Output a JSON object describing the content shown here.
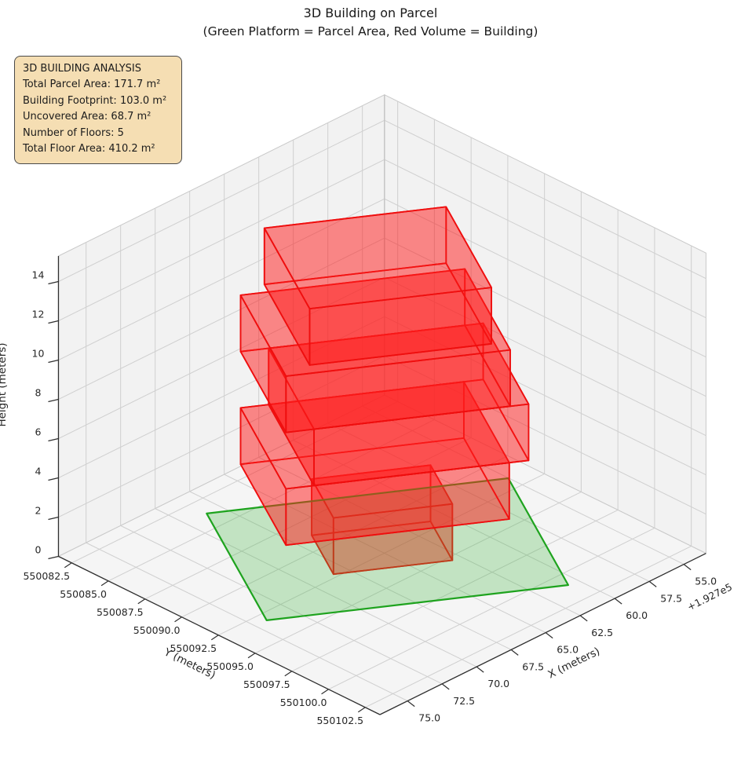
{
  "title": {
    "line1": "3D Building on Parcel",
    "line2": "(Green Platform = Parcel Area, Red Volume = Building)"
  },
  "info_box": {
    "title": "3D BUILDING ANALYSIS",
    "lines": [
      "Total Parcel Area: 171.7 m²",
      "Building Footprint: 103.0 m²",
      "Uncovered Area: 68.7 m²",
      "Number of Floors: 5",
      "Total Floor Area: 410.2 m²"
    ],
    "bg_color": "#f5deb3",
    "border_color": "#4a4a4a"
  },
  "chart_data": {
    "type": "3d-building-plot",
    "title": "3D Building on Parcel",
    "subtitle": "(Green Platform = Parcel Area, Red Volume = Building)",
    "axes": {
      "x": {
        "label": "X (meters)",
        "offset_text": "+1.927e5",
        "range": [
          53.4,
          77.0
        ],
        "ticks": [
          55.0,
          57.5,
          60.0,
          62.5,
          65.0,
          67.5,
          70.0,
          72.5,
          75.0
        ],
        "tick_labels": [
          "55.0",
          "57.5",
          "60.0",
          "62.5",
          "65.0",
          "67.5",
          "70.0",
          "72.5",
          "75.0"
        ]
      },
      "y": {
        "label": "Y (meters)",
        "range": [
          550081.6,
          550103.5
        ],
        "ticks": [
          550082.5,
          550085.0,
          550087.5,
          550090.0,
          550092.5,
          550095.0,
          550097.5,
          550100.0,
          550102.5
        ],
        "tick_labels": [
          "550082.5",
          "550085.0",
          "550087.5",
          "550090.0",
          "550092.5",
          "550095.0",
          "550097.5",
          "550100.0",
          "550102.5"
        ]
      },
      "z": {
        "label": "Height (meters)",
        "range": [
          0,
          15.3
        ],
        "ticks": [
          0,
          2,
          4,
          6,
          8,
          10,
          12,
          14
        ],
        "tick_labels": [
          "0",
          "2",
          "4",
          "6",
          "8",
          "10",
          "12",
          "14"
        ]
      },
      "grid": true,
      "pane_color": "#f2f2f2",
      "grid_color": "#cfcfcf",
      "pane_edge_color": "#c9c9c9",
      "spine_color": "#2f2f2f"
    },
    "parcel": {
      "area_m2": 171.7,
      "edge_color": "#1ea31e",
      "fill_color": "#3cb43c",
      "fill_alpha": 0.27,
      "uv_rect": [
        0,
        11.0,
        0,
        15.6
      ]
    },
    "building": {
      "footprint_m2": 103.0,
      "uncovered_m2": 68.7,
      "num_floors": 5,
      "total_floor_area_m2": 410.2,
      "floor_height_m": 2.87,
      "edge_color": "#ee0e0e",
      "fill_color": "#ff1e1e",
      "fill_alpha": 0.3,
      "floor_boxes_uv": [
        {
          "u0": 3.3,
          "u1": 7.3,
          "v0": 4.5,
          "v1": 10.65,
          "z0": 0.0,
          "z1": 2.87
        },
        {
          "u0": 1.07,
          "u1": 9.4,
          "v0": 1.45,
          "v1": 13.0,
          "z0": 2.87,
          "z1": 5.74
        },
        {
          "u0": 1.07,
          "u1": 9.4,
          "v0": 2.9,
          "v1": 14.0,
          "z0": 5.74,
          "z1": 8.61
        },
        {
          "u0": 1.07,
          "u1": 9.4,
          "v0": 1.45,
          "v1": 13.05,
          "z0": 8.61,
          "z1": 11.48
        },
        {
          "u0": 0.3,
          "u1": 8.6,
          "v0": 2.9,
          "v1": 12.3,
          "z0": 11.48,
          "z1": 14.35
        }
      ]
    },
    "frame": {
      "origin_xy": [
        68.5,
        550083.7
      ],
      "u_dir": [
        0.5157,
        0.8566
      ],
      "v_dir": [
        -0.8639,
        0.5039
      ]
    }
  }
}
